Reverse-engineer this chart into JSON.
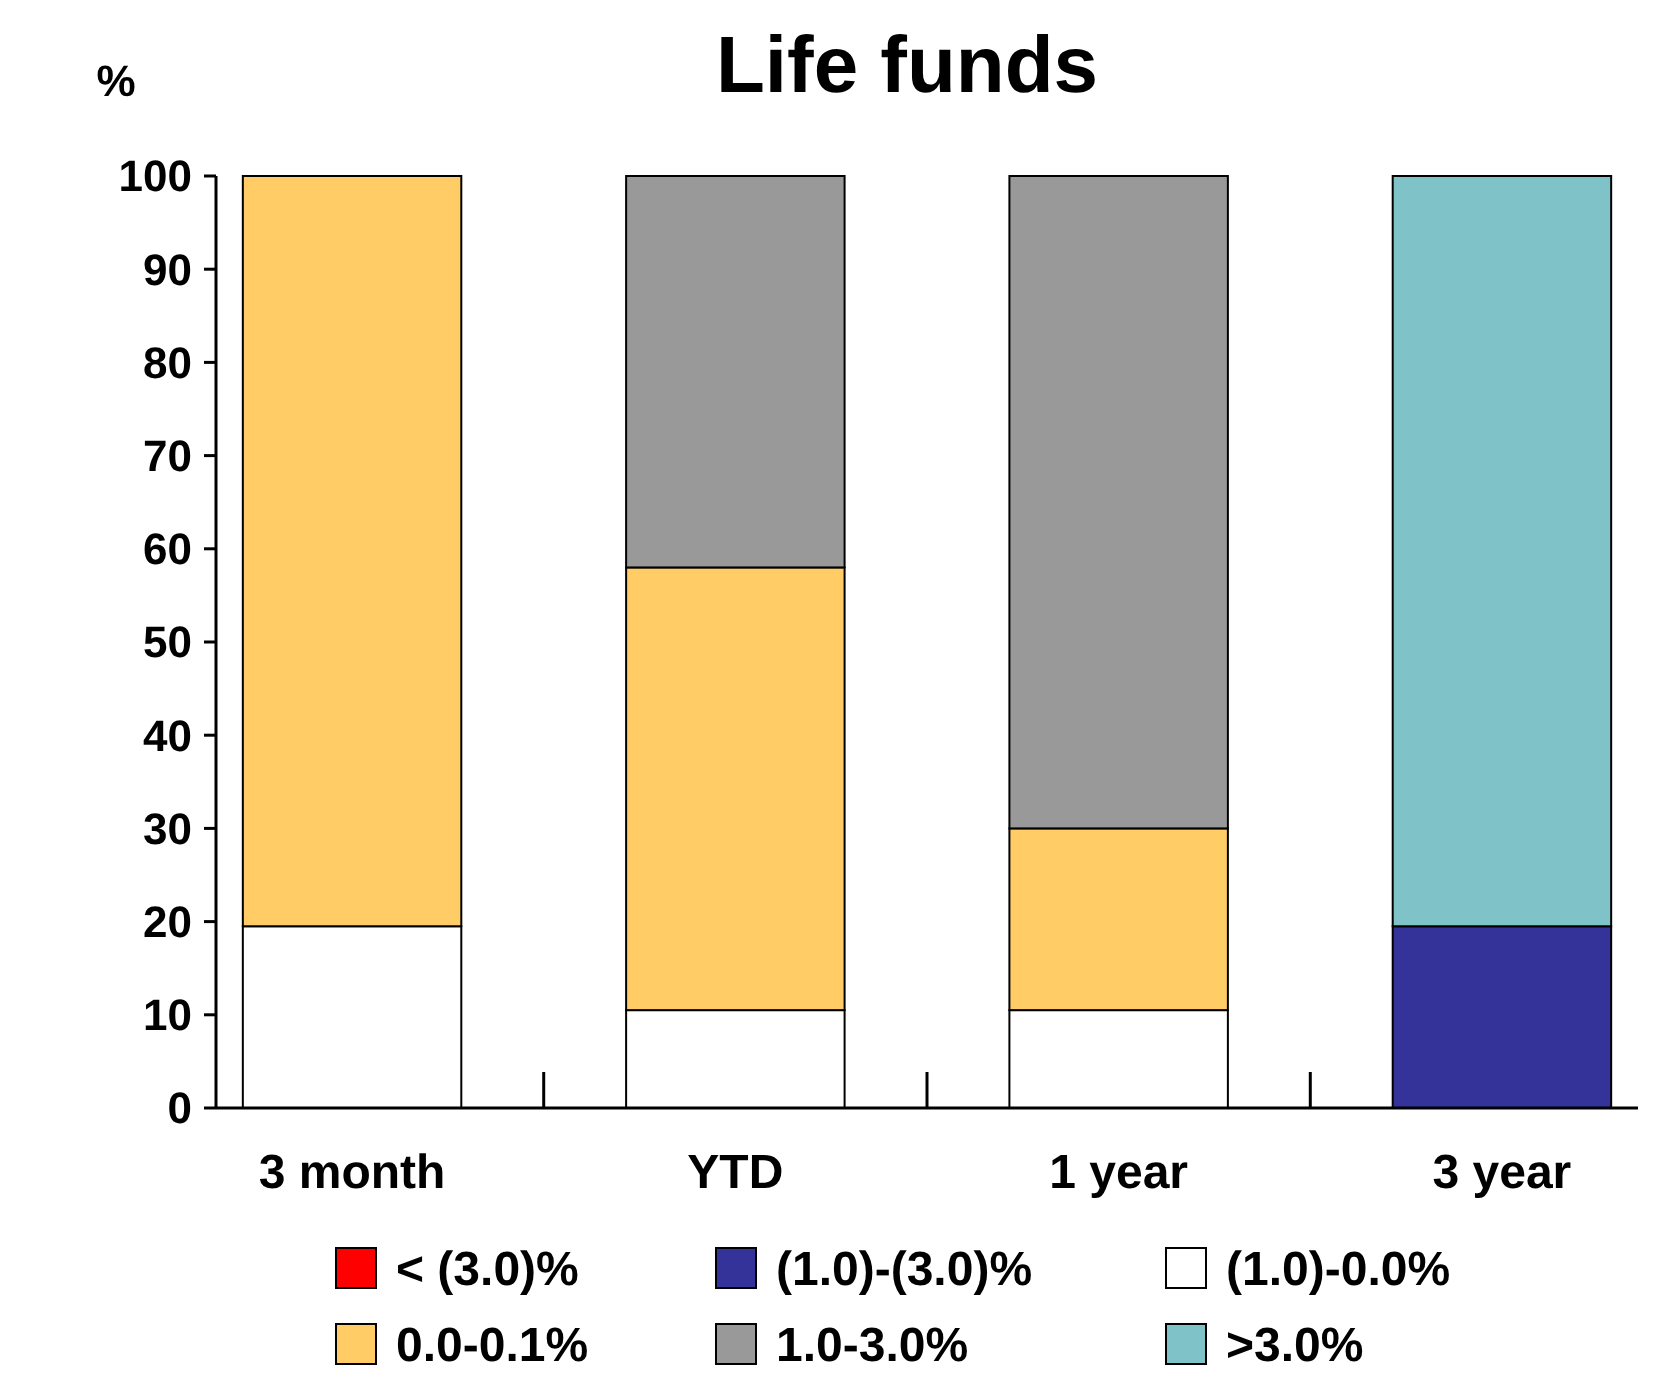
{
  "chart_data": {
    "type": "bar",
    "title": "Life funds",
    "ylabel": "%",
    "stacked": true,
    "categories": [
      "3 month",
      "YTD",
      "1 year",
      "3 year"
    ],
    "series": [
      {
        "name": "< (3.0)%",
        "color": "#ff0000",
        "values": [
          0,
          0,
          0,
          0
        ]
      },
      {
        "name": "(1.0)-(3.0)%",
        "color": "#333399",
        "values": [
          0,
          0,
          0,
          19.5
        ]
      },
      {
        "name": "(1.0)-0.0%",
        "color": "#ffffff",
        "values": [
          19.5,
          10.5,
          10.5,
          0
        ]
      },
      {
        "name": "0.0-0.1%",
        "color": "#ffcc66",
        "values": [
          80.5,
          47.5,
          19.5,
          0
        ]
      },
      {
        "name": "1.0-3.0%",
        "color": "#999999",
        "values": [
          0,
          42,
          70,
          0
        ]
      },
      {
        "name": ">3.0%",
        "color": "#7fc3c8",
        "values": [
          0,
          0,
          0,
          80.5
        ]
      }
    ],
    "ylim": [
      0,
      100
    ],
    "yticks": [
      0,
      10,
      20,
      30,
      40,
      50,
      60,
      70,
      80,
      90,
      100
    ],
    "grid": false,
    "legend": "bottom"
  }
}
